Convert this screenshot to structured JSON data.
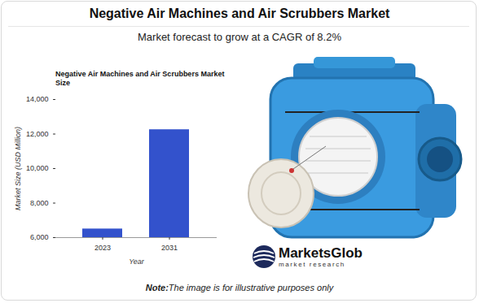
{
  "header": {
    "title": "Negative Air Machines and Air Scrubbers Market",
    "subtitle": "Market forecast to grow at a CAGR of 8.2%"
  },
  "chart_data": {
    "type": "bar",
    "title": "Negative Air Machines and Air Scrubbers Market Size",
    "categories": [
      "2023",
      "2031"
    ],
    "values": [
      6500,
      12250
    ],
    "color": "#3352cc",
    "x_label": "Year",
    "y_label": "Market Size (USD Million)",
    "ylim": [
      6000,
      14000
    ],
    "yticks": [
      {
        "value": 6000,
        "label": "6,000"
      },
      {
        "value": 8000,
        "label": "8,000"
      },
      {
        "value": 10000,
        "label": "10,000"
      },
      {
        "value": 12000,
        "label": "12,000"
      },
      {
        "value": 14000,
        "label": "14,000"
      }
    ],
    "grid": false
  },
  "logo": {
    "name": "MarketsGlob",
    "tagline": "market research"
  },
  "note": {
    "label": "Note:",
    "text": "The image is for illustrative purposes only"
  }
}
